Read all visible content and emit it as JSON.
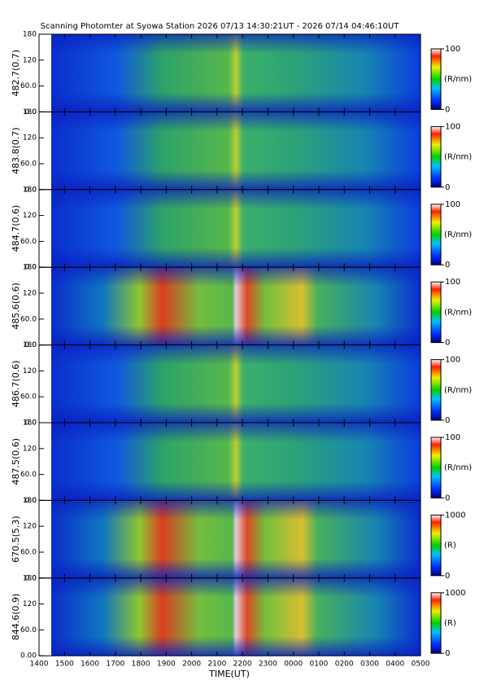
{
  "title": "Scanning Photomter at Syowa Station 2026 07/13 14:30:21UT - 2026 07/14 04:46:10UT",
  "xlabel": "TIME(UT)",
  "xlim": [
    14,
    29
  ],
  "xticks": [
    {
      "value": 14,
      "label": "1400"
    },
    {
      "value": 15,
      "label": "1500"
    },
    {
      "value": 16,
      "label": "1600"
    },
    {
      "value": 17,
      "label": "1700"
    },
    {
      "value": 18,
      "label": "1800"
    },
    {
      "value": 19,
      "label": "1900"
    },
    {
      "value": 20,
      "label": "2000"
    },
    {
      "value": 21,
      "label": "2100"
    },
    {
      "value": 22,
      "label": "2200"
    },
    {
      "value": 23,
      "label": "2300"
    },
    {
      "value": 24,
      "label": "0000"
    },
    {
      "value": 25,
      "label": "0100"
    },
    {
      "value": 26,
      "label": "0200"
    },
    {
      "value": 27,
      "label": "0300"
    },
    {
      "value": 28,
      "label": "0400"
    },
    {
      "value": 29,
      "label": "0500"
    }
  ],
  "chart_data": [
    {
      "type": "heatmap",
      "ylabel": "482.7(0.7)",
      "ylim": [
        0,
        180
      ],
      "yticks": [
        {
          "value": 0,
          "label": "0.0"
        },
        {
          "value": 60,
          "label": "60.0"
        },
        120,
        180
      ],
      "colorbar_ticks": [
        0,
        100
      ],
      "colorbar_label": "(R/nm)"
    },
    {
      "type": "heatmap",
      "ylabel": "483.8(0.7)",
      "ylim": [
        0,
        180
      ],
      "yticks": [
        {
          "value": 0,
          "label": "0.0"
        },
        {
          "value": 60,
          "label": "60.0"
        },
        120,
        180
      ],
      "colorbar_ticks": [
        0,
        100
      ],
      "colorbar_label": "(R/nm)"
    },
    {
      "type": "heatmap",
      "ylabel": "484.7(0.6)",
      "ylim": [
        0,
        180
      ],
      "yticks": [
        {
          "value": 0,
          "label": "0.0"
        },
        {
          "value": 60,
          "label": "60.0"
        },
        120,
        180
      ],
      "colorbar_ticks": [
        0,
        100
      ],
      "colorbar_label": "(R/nm)"
    },
    {
      "type": "heatmap",
      "ylabel": "485.6(0.6)",
      "ylim": [
        0,
        180
      ],
      "yticks": [
        {
          "value": 0,
          "label": "0.0"
        },
        {
          "value": 60,
          "label": "60.0"
        },
        120,
        180
      ],
      "colorbar_ticks": [
        0,
        100
      ],
      "colorbar_label": "(R/nm)"
    },
    {
      "type": "heatmap",
      "ylabel": "486.7(0.6)",
      "ylim": [
        0,
        180
      ],
      "yticks": [
        {
          "value": 0,
          "label": "0.0"
        },
        {
          "value": 60,
          "label": "60.0"
        },
        120,
        180
      ],
      "colorbar_ticks": [
        0,
        100
      ],
      "colorbar_label": "(R/nm)"
    },
    {
      "type": "heatmap",
      "ylabel": "487.5(0.6)",
      "ylim": [
        0,
        180
      ],
      "yticks": [
        {
          "value": 0,
          "label": "0.0"
        },
        {
          "value": 60,
          "label": "60.0"
        },
        120,
        180
      ],
      "colorbar_ticks": [
        0,
        100
      ],
      "colorbar_label": "(R/nm)"
    },
    {
      "type": "heatmap",
      "ylabel": "670.5(5.3)",
      "ylim": [
        0,
        180
      ],
      "yticks": [
        {
          "value": 0,
          "label": "0.0"
        },
        {
          "value": 60,
          "label": "60.0"
        },
        120,
        180
      ],
      "colorbar_ticks": [
        0,
        1000
      ],
      "colorbar_label": "(R)"
    },
    {
      "type": "heatmap",
      "ylabel": "844.6(0.9)",
      "ylim": [
        0,
        180
      ],
      "yticks": [
        {
          "value": 0,
          "label": "0.00"
        },
        {
          "value": 60,
          "label": "60.0"
        },
        120,
        180
      ],
      "colorbar_ticks": [
        0,
        1000
      ],
      "colorbar_label": "(R)"
    }
  ]
}
